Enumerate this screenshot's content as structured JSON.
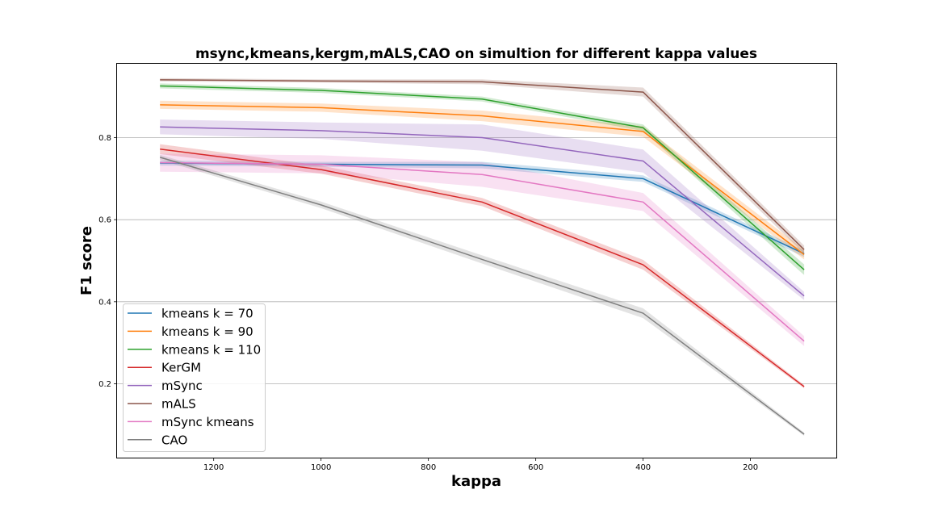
{
  "chart_data": {
    "type": "line",
    "title": "msync,kmeans,kergm,mALS,CAO on simultion for different kappa values",
    "xlabel": "kappa",
    "ylabel": "F1 score",
    "x": [
      1300,
      1000,
      700,
      400,
      100
    ],
    "xlim": [
      1380,
      40
    ],
    "ylim": [
      0.02,
      0.98
    ],
    "x_ticks": [
      1200,
      1000,
      800,
      600,
      400,
      200
    ],
    "y_ticks": [
      0.2,
      0.4,
      0.6,
      0.8
    ],
    "x_inverted": true,
    "grid": "horizontal",
    "legend_position": "lower-left",
    "series": [
      {
        "name": "kmeans k = 70",
        "color": "#1f77b4",
        "values": [
          0.738,
          0.735,
          0.733,
          0.7,
          0.517
        ],
        "ci": [
          0.006,
          0.006,
          0.008,
          0.008,
          0.008
        ]
      },
      {
        "name": "kmeans k = 90",
        "color": "#ff7f0e",
        "values": [
          0.88,
          0.873,
          0.853,
          0.815,
          0.515
        ],
        "ci": [
          0.01,
          0.01,
          0.013,
          0.013,
          0.012
        ]
      },
      {
        "name": "kmeans k = 110",
        "color": "#2ca02c",
        "values": [
          0.926,
          0.915,
          0.894,
          0.824,
          0.478
        ],
        "ci": [
          0.006,
          0.006,
          0.006,
          0.008,
          0.013
        ]
      },
      {
        "name": "KerGM",
        "color": "#d62728",
        "values": [
          0.772,
          0.722,
          0.643,
          0.49,
          0.193
        ],
        "ci": [
          0.012,
          0.01,
          0.01,
          0.012,
          0.004
        ]
      },
      {
        "name": "mSync",
        "color": "#9467bd",
        "values": [
          0.826,
          0.817,
          0.8,
          0.743,
          0.414
        ],
        "ci": [
          0.018,
          0.02,
          0.032,
          0.028,
          0.01
        ]
      },
      {
        "name": "mALS",
        "color": "#8c564b",
        "values": [
          0.941,
          0.938,
          0.936,
          0.911,
          0.527
        ],
        "ci": [
          0.004,
          0.004,
          0.006,
          0.011,
          0.01
        ]
      },
      {
        "name": "mSync kmeans",
        "color": "#e377c2",
        "values": [
          0.739,
          0.735,
          0.71,
          0.643,
          0.304
        ],
        "ci": [
          0.022,
          0.022,
          0.03,
          0.022,
          0.012
        ]
      },
      {
        "name": "CAO",
        "color": "#7f7f7f",
        "values": [
          0.752,
          0.636,
          0.503,
          0.372,
          0.077
        ],
        "ci": [
          0.006,
          0.008,
          0.01,
          0.012,
          0.004
        ]
      }
    ]
  }
}
